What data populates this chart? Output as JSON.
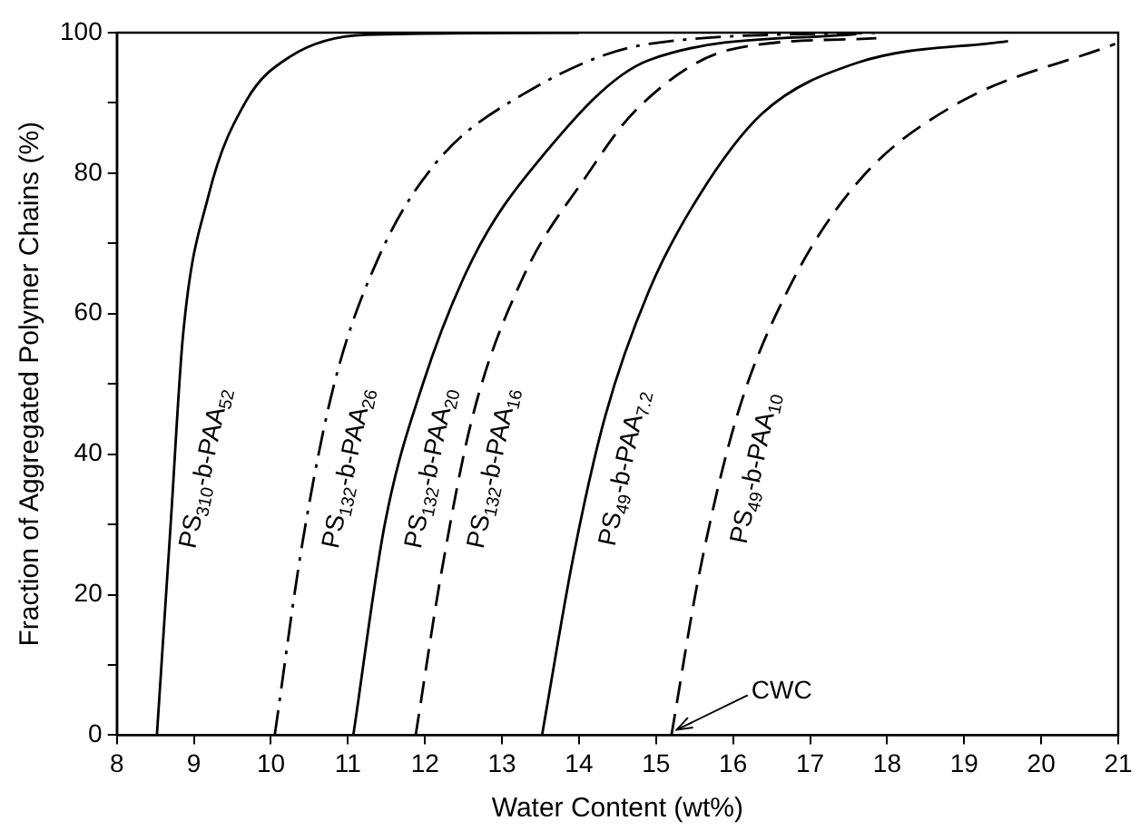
{
  "chart_data": {
    "type": "line",
    "xlabel": "Water Content (wt%)",
    "ylabel": "Fraction of Aggregated Polymer Chains (%)",
    "xlim": [
      8,
      21
    ],
    "xticks": [
      8,
      9,
      10,
      11,
      12,
      13,
      14,
      15,
      16,
      17,
      18,
      19,
      20,
      21
    ],
    "ylim": [
      0,
      100
    ],
    "yticks": [
      0,
      {
        "value": 10,
        "label": null
      },
      20,
      {
        "value": 30,
        "label": null
      },
      40,
      {
        "value": 50,
        "label": null
      },
      60,
      {
        "value": 70,
        "label": null
      },
      80,
      {
        "value": 90,
        "label": null
      },
      100
    ],
    "grid": false,
    "legend": false,
    "marker": "none",
    "series": [
      {
        "name": "PS$_{310}$-b-PAA$_{52}$",
        "color": "#000000",
        "line_style": "solid",
        "x": [
          8.52,
          8.7,
          8.86,
          9.19,
          9.68,
          10.25,
          11.23,
          14
        ],
        "values": [
          0,
          30.2,
          57,
          76.8,
          90.3,
          96.6,
          99.7,
          100
        ]
      },
      {
        "name": "PS$_{132}$-b-PAA$_{26}$",
        "color": "#000000",
        "line_style": "dashdot",
        "x": [
          10.05,
          10.41,
          10.82,
          11.39,
          12.13,
          13.27,
          14.91,
          17.85
        ],
        "values": [
          0,
          27.4,
          49.9,
          67.8,
          81.3,
          91.2,
          98.4,
          100
        ]
      },
      {
        "name": "PS$_{132}$-b-PAA$_{20}$",
        "color": "#000000",
        "line_style": "solid",
        "x": [
          11.07,
          11.48,
          11.97,
          12.62,
          13.44,
          14.91,
          17.6
        ],
        "values": [
          0,
          30.1,
          49.9,
          67.8,
          81.3,
          96.1,
          99.8
        ]
      },
      {
        "name": "PS$_{132}$-b-PAA$_{16}$",
        "color": "#000000",
        "line_style": "dashed",
        "x": [
          11.88,
          12.21,
          12.62,
          13.27,
          14.09,
          14.74,
          15.97,
          17.86
        ],
        "values": [
          0,
          22.9,
          45.4,
          65.1,
          79.5,
          89,
          97.6,
          99.2
        ]
      },
      {
        "name": "PS$_{49}$-b-PAA$_{7.2}$",
        "color": "#000000",
        "line_style": "solid",
        "x": [
          13.52,
          13.93,
          14.34,
          14.91,
          15.56,
          16.38,
          17.61,
          19.57
        ],
        "values": [
          0,
          25.6,
          45.4,
          63.3,
          76.8,
          88.5,
          95.7,
          98.8
        ]
      },
      {
        "name": "PS$_{49}$-b-PAA$_{10}$",
        "color": "#000000",
        "line_style": "dashed",
        "x": [
          15.2,
          15.56,
          16.05,
          16.71,
          17.61,
          18.83,
          20.96
        ],
        "values": [
          0,
          22.9,
          45.4,
          63.3,
          78.6,
          89.4,
          98.4
        ]
      }
    ],
    "annotations": [
      {
        "text": "CWC",
        "x": 15.2,
        "y": 0
      }
    ]
  }
}
